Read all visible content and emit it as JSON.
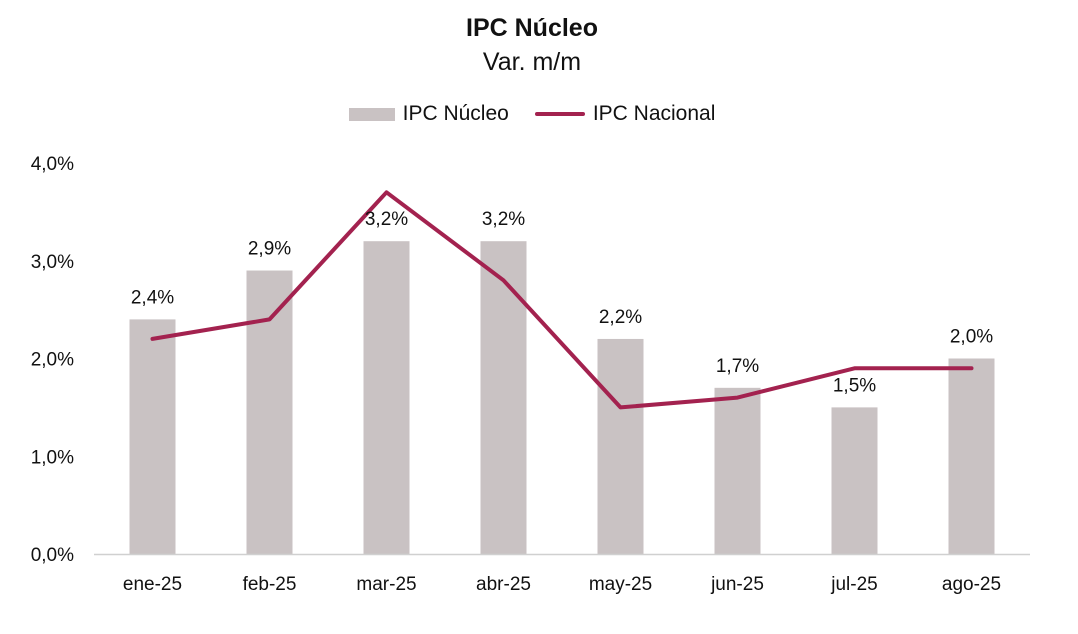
{
  "chart_data": {
    "type": "bar",
    "title": "IPC Núcleo",
    "subtitle": "Var. m/m",
    "categories": [
      "ene-25",
      "feb-25",
      "mar-25",
      "abr-25",
      "may-25",
      "jun-25",
      "jul-25",
      "ago-25"
    ],
    "series": [
      {
        "name": "IPC Núcleo",
        "type": "bar",
        "color": "#c9c2c3",
        "values": [
          2.4,
          2.9,
          3.2,
          3.2,
          2.2,
          1.7,
          1.5,
          2.0
        ],
        "data_labels": [
          "2,4%",
          "2,9%",
          "3,2%",
          "3,2%",
          "2,2%",
          "1,7%",
          "1,5%",
          "2,0%"
        ]
      },
      {
        "name": "IPC Nacional",
        "type": "line",
        "color": "#a3224f",
        "values": [
          2.2,
          2.4,
          3.7,
          2.8,
          1.5,
          1.6,
          1.9,
          1.9
        ]
      }
    ],
    "ylim": [
      0,
      4
    ],
    "yticks": [
      "0,0%",
      "1,0%",
      "2,0%",
      "3,0%",
      "4,0%"
    ],
    "grid": false,
    "legend_position": "top-center"
  }
}
